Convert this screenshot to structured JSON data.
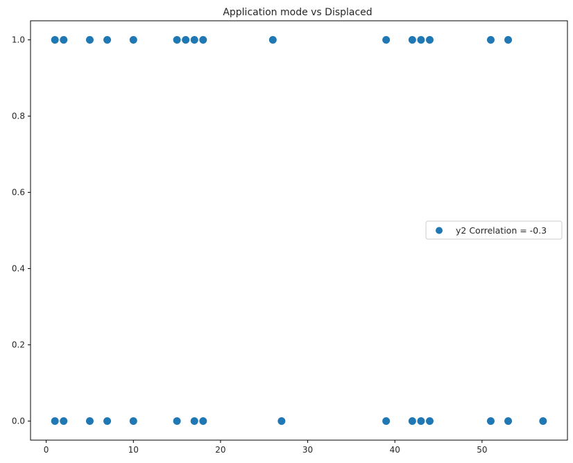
{
  "chart_data": {
    "type": "scatter",
    "title": "Application mode vs Displaced",
    "xlabel": "",
    "ylabel": "",
    "xlim": [
      -1.8,
      59.8
    ],
    "ylim": [
      -0.05,
      1.05
    ],
    "xticks": [
      0,
      10,
      20,
      30,
      40,
      50
    ],
    "xtick_labels": [
      "0",
      "10",
      "20",
      "30",
      "40",
      "50"
    ],
    "yticks": [
      0.0,
      0.2,
      0.4,
      0.6,
      0.8,
      1.0
    ],
    "ytick_labels": [
      "0.0",
      "0.2",
      "0.4",
      "0.6",
      "0.8",
      "1.0"
    ],
    "grid": false,
    "legend_position": "center-right",
    "series": [
      {
        "name": "y2 Correlation = -0.3",
        "color": "#1f77b4",
        "points": [
          [
            1,
            1
          ],
          [
            2,
            1
          ],
          [
            5,
            1
          ],
          [
            7,
            1
          ],
          [
            10,
            1
          ],
          [
            15,
            1
          ],
          [
            16,
            1
          ],
          [
            17,
            1
          ],
          [
            18,
            1
          ],
          [
            26,
            1
          ],
          [
            39,
            1
          ],
          [
            42,
            1
          ],
          [
            43,
            1
          ],
          [
            44,
            1
          ],
          [
            51,
            1
          ],
          [
            53,
            1
          ],
          [
            1,
            0
          ],
          [
            2,
            0
          ],
          [
            5,
            0
          ],
          [
            7,
            0
          ],
          [
            10,
            0
          ],
          [
            15,
            0
          ],
          [
            17,
            0
          ],
          [
            18,
            0
          ],
          [
            27,
            0
          ],
          [
            39,
            0
          ],
          [
            42,
            0
          ],
          [
            43,
            0
          ],
          [
            44,
            0
          ],
          [
            51,
            0
          ],
          [
            53,
            0
          ],
          [
            57,
            0
          ]
        ]
      }
    ]
  }
}
